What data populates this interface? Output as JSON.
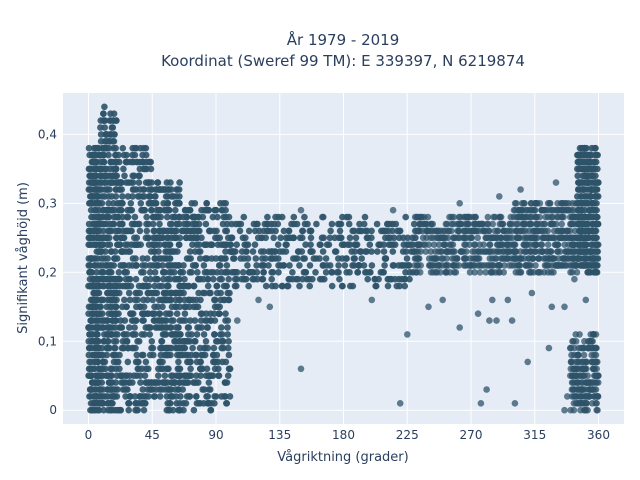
{
  "chart_data": {
    "type": "scatter",
    "title_line1": "År 1979 - 2019",
    "title_line2": "Koordinat (Sweref 99 TM): E 339397, N 6219874",
    "xlabel": "Vågriktning (grader)",
    "ylabel": "Signifikant våghöjd (m)",
    "xlim": [
      -18,
      378
    ],
    "ylim": [
      -0.02,
      0.46
    ],
    "x_ticks": [
      0,
      45,
      90,
      135,
      180,
      225,
      270,
      315,
      360
    ],
    "x_tick_labels": [
      "0",
      "45",
      "90",
      "135",
      "180",
      "225",
      "270",
      "315",
      "360"
    ],
    "y_ticks": [
      0,
      0.1,
      0.2,
      0.3,
      0.4
    ],
    "y_tick_labels": [
      "0",
      "0,1",
      "0,2",
      "0,3",
      "0,4"
    ],
    "grid": true,
    "background": "#e5ecf6",
    "marker_color": "#2e5369",
    "data_regions": [
      {
        "x": [
          0,
          8
        ],
        "y": [
          0,
          0.38
        ],
        "density": "dense"
      },
      {
        "x": [
          8,
          20
        ],
        "y": [
          0,
          0.44
        ],
        "density": "dense"
      },
      {
        "x": [
          20,
          45
        ],
        "y": [
          0,
          0.38
        ],
        "density": "dense"
      },
      {
        "x": [
          45,
          65
        ],
        "y": [
          0,
          0.33
        ],
        "density": "dense"
      },
      {
        "x": [
          65,
          100
        ],
        "y": [
          0,
          0.3
        ],
        "density": "dense"
      },
      {
        "x": [
          100,
          230
        ],
        "y": [
          0.18,
          0.28
        ],
        "density": "dense"
      },
      {
        "x": [
          230,
          300
        ],
        "y": [
          0.2,
          0.28
        ],
        "density": "medium"
      },
      {
        "x": [
          300,
          345
        ],
        "y": [
          0.2,
          0.3
        ],
        "density": "medium"
      },
      {
        "x": [
          345,
          360
        ],
        "y": [
          0.2,
          0.38
        ],
        "density": "dense"
      },
      {
        "x": [
          340,
          360
        ],
        "y": [
          0,
          0.11
        ],
        "density": "medium"
      }
    ],
    "sample_points": [
      {
        "x": 150,
        "y": 0.06
      },
      {
        "x": 220,
        "y": 0.01
      },
      {
        "x": 225,
        "y": 0.11
      },
      {
        "x": 262,
        "y": 0.12
      },
      {
        "x": 277,
        "y": 0.01
      },
      {
        "x": 281,
        "y": 0.03
      },
      {
        "x": 283,
        "y": 0.13
      },
      {
        "x": 288,
        "y": 0.13
      },
      {
        "x": 299,
        "y": 0.13
      },
      {
        "x": 301,
        "y": 0.01
      },
      {
        "x": 310,
        "y": 0.07
      },
      {
        "x": 325,
        "y": 0.09
      },
      {
        "x": 327,
        "y": 0.15
      },
      {
        "x": 336,
        "y": 0.0
      },
      {
        "x": 338,
        "y": 0.02
      },
      {
        "x": 342,
        "y": 0.04
      },
      {
        "x": 343,
        "y": 0.19
      },
      {
        "x": 346,
        "y": 0.09
      },
      {
        "x": 349,
        "y": 0.07
      },
      {
        "x": 351,
        "y": 0.16
      },
      {
        "x": 352,
        "y": 0.37
      },
      {
        "x": 128,
        "y": 0.15
      },
      {
        "x": 150,
        "y": 0.29
      },
      {
        "x": 165,
        "y": 0.28
      },
      {
        "x": 240,
        "y": 0.15
      },
      {
        "x": 250,
        "y": 0.16
      },
      {
        "x": 262,
        "y": 0.3
      },
      {
        "x": 275,
        "y": 0.14
      },
      {
        "x": 285,
        "y": 0.16
      },
      {
        "x": 290,
        "y": 0.31
      },
      {
        "x": 296,
        "y": 0.16
      },
      {
        "x": 305,
        "y": 0.32
      },
      {
        "x": 313,
        "y": 0.17
      },
      {
        "x": 330,
        "y": 0.33
      },
      {
        "x": 336,
        "y": 0.15
      },
      {
        "x": 120,
        "y": 0.16
      },
      {
        "x": 105,
        "y": 0.13
      },
      {
        "x": 200,
        "y": 0.16
      },
      {
        "x": 215,
        "y": 0.29
      }
    ]
  }
}
